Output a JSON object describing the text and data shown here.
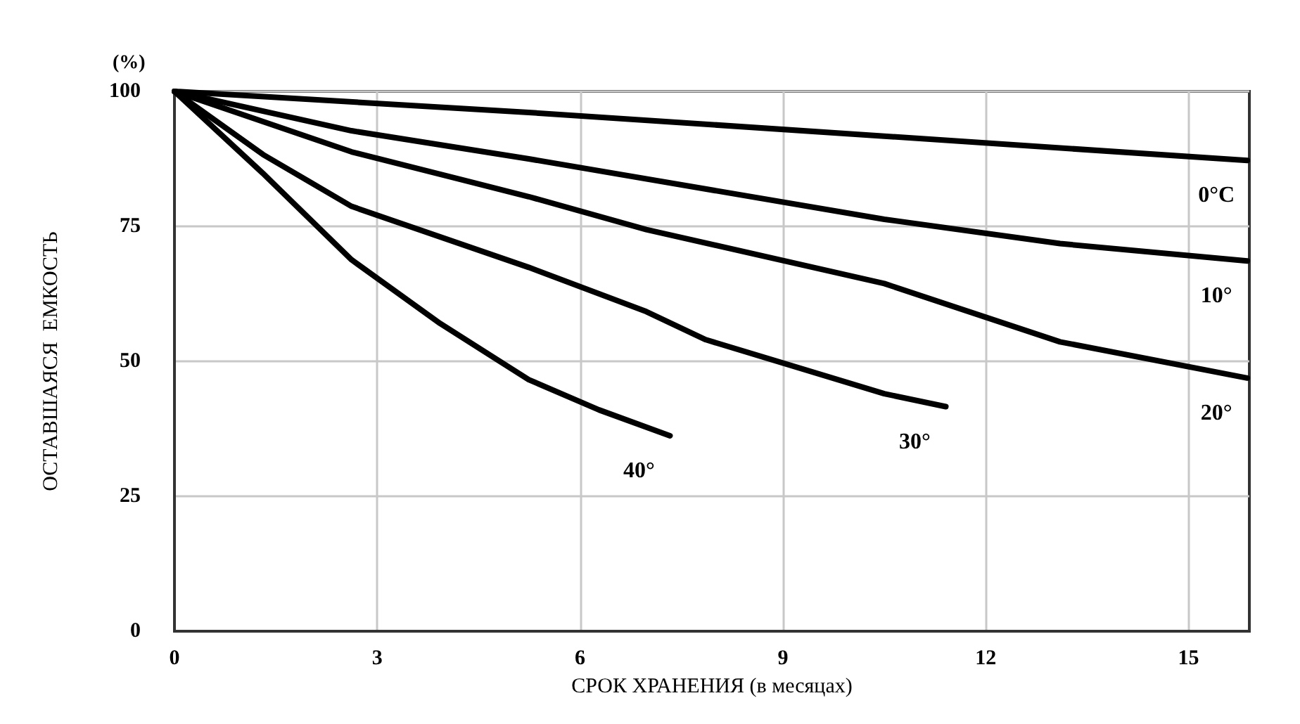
{
  "chart_data": {
    "type": "line",
    "xlabel": "СРОК ХРАНЕНИЯ (в месяцах)",
    "ylabel": "ОСТАВШАЯСЯ  ЕМКОСТЬ",
    "annotations": [
      "(%)"
    ],
    "xlim": [
      0,
      15.9
    ],
    "xticks": [
      0,
      3,
      6,
      9,
      12,
      15
    ],
    "ylim": [
      0,
      100
    ],
    "yticks": [
      0,
      25,
      50,
      75,
      100
    ],
    "grid": true,
    "legend": false,
    "marker": "none",
    "line_style": "solid",
    "series": [
      {
        "name": "0°C",
        "color": "#000000",
        "x": [
          0,
          5.24,
          10.5,
          15.87
        ],
        "values": [
          100,
          96.1,
          91.7,
          87.2
        ]
      },
      {
        "name": "10°",
        "color": "#000000",
        "x": [
          0,
          2.62,
          5.24,
          10.5,
          13.1,
          15.87
        ],
        "values": [
          100,
          92.7,
          87.5,
          76.3,
          71.8,
          68.6
        ]
      },
      {
        "name": "20°",
        "color": "#000000",
        "x": [
          0,
          2.62,
          5.24,
          6.98,
          10.5,
          13.1,
          15.87
        ],
        "values": [
          100,
          88.8,
          80.5,
          74.4,
          64.4,
          53.6,
          46.9
        ]
      },
      {
        "name": "30°",
        "color": "#000000",
        "x": [
          0,
          1.31,
          2.62,
          5.24,
          6.98,
          7.86,
          10.5,
          11.41
        ],
        "values": [
          100,
          88.3,
          78.7,
          67.4,
          59.2,
          54.0,
          44.0,
          41.6
        ]
      },
      {
        "name": "40°",
        "color": "#000000",
        "x": [
          0,
          1.31,
          2.62,
          3.93,
          5.24,
          6.28,
          7.33
        ],
        "values": [
          100,
          84.8,
          68.8,
          57.0,
          46.6,
          41.0,
          36.2
        ]
      }
    ]
  }
}
